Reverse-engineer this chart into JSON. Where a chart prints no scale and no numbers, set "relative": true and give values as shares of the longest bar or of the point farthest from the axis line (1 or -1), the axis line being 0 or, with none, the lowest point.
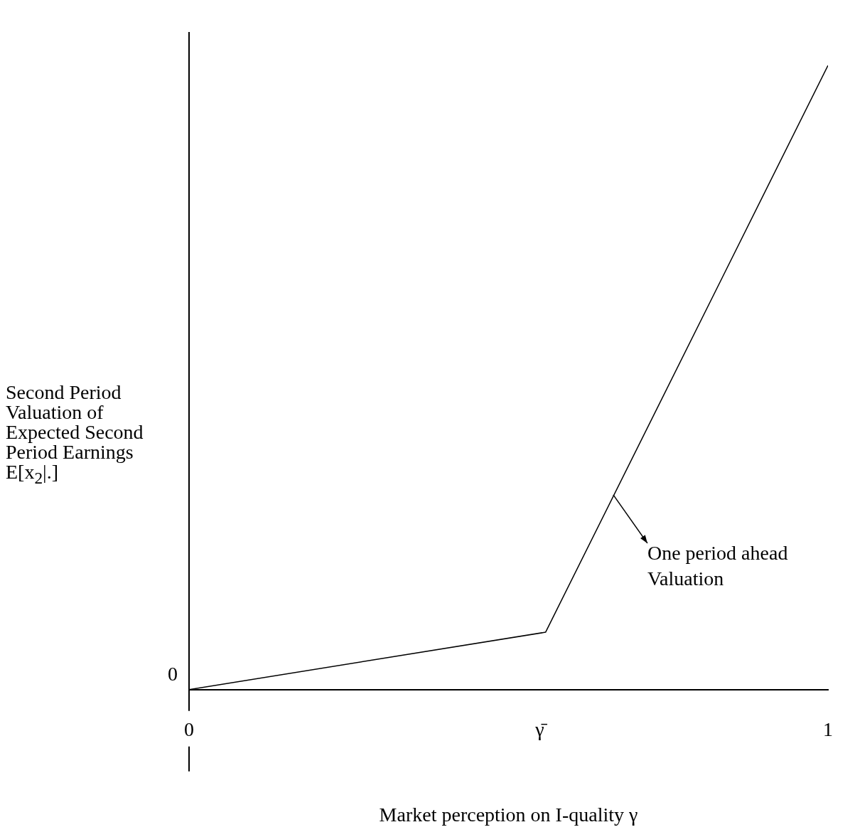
{
  "chart_data": {
    "type": "line",
    "relative": true,
    "xlabel": "Market perception on I-quality γ",
    "ylabel": "Second Period Valuation of Expected Second Period Earnings E[x$_{2}$|.]",
    "x": [
      0,
      0.558,
      1
    ],
    "series": [
      {
        "color": "#000000",
        "values": [
          0,
          0.092,
          1
        ]
      }
    ],
    "xlim": [
      0,
      1
    ],
    "xticks": [
      0,
      {
        "value": 0.549,
        "label": "γ̄"
      },
      1
    ],
    "marker": "none",
    "line_style": "solid",
    "legend": false,
    "annotations": [
      "0",
      {
        "text": "One period ahead Valuation",
        "x": 0.664,
        "y": 0.312
      }
    ]
  }
}
